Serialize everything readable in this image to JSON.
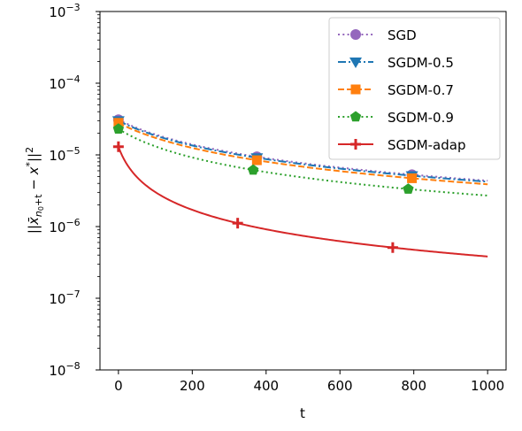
{
  "chart_data": {
    "type": "line",
    "xlabel": "t",
    "ylabel": "||x̄_{n₀+t} − x*||²",
    "ylabel_parts": {
      "open": "||",
      "xbar": "x̄",
      "sub_n": "n",
      "sub_0": "0",
      "sub_rest": "+t",
      "minus": " − x",
      "star": "*",
      "close": "||",
      "sq": "2"
    },
    "x_scale": "linear",
    "y_scale": "log",
    "xlim": [
      -50,
      1050
    ],
    "ylim": [
      1e-08,
      0.001
    ],
    "xticks": [
      0,
      200,
      400,
      600,
      800,
      1000
    ],
    "xtick_labels": [
      "0",
      "200",
      "400",
      "600",
      "800",
      "1000"
    ],
    "yticks": [
      {
        "value": 1e-08,
        "base": "10",
        "exp": "−8"
      },
      {
        "value": 1e-07,
        "base": "10",
        "exp": "−7"
      },
      {
        "value": 1e-06,
        "base": "10",
        "exp": "−6"
      },
      {
        "value": 1e-05,
        "base": "10",
        "exp": "−5"
      },
      {
        "value": 0.0001,
        "base": "10",
        "exp": "−4"
      },
      {
        "value": 0.001,
        "base": "10",
        "exp": "−3"
      }
    ],
    "grid": false,
    "legend_position": "top-right",
    "series": [
      {
        "name": "SGD",
        "color": "#9467bd",
        "linestyle": "dotted",
        "marker": "circle",
        "a": 3.1e-05,
        "b": 0.0,
        "c": 0.0061,
        "d": 1.0,
        "marker_x": [
          0,
          375,
          795
        ]
      },
      {
        "name": "SGDM-0.5",
        "color": "#1f77b4",
        "linestyle": "dashdot",
        "marker": "triangle-down",
        "a": 3e-05,
        "b": 0.0,
        "c": 0.0061,
        "d": 1.0,
        "marker_x": [
          0,
          375,
          795
        ]
      },
      {
        "name": "SGDM-0.7",
        "color": "#ff7f0e",
        "linestyle": "dashed",
        "marker": "square",
        "a": 2.8e-05,
        "b": 0.0,
        "c": 0.0062,
        "d": 1.0,
        "marker_x": [
          0,
          375,
          795
        ]
      },
      {
        "name": "SGDM-0.9",
        "color": "#2ca02c",
        "linestyle": "dotted",
        "marker": "pentagon",
        "a": 2.3e-05,
        "b": 0.0,
        "c": 0.0075,
        "d": 1.0,
        "marker_x": [
          0,
          365,
          785
        ]
      },
      {
        "name": "SGDM-adap",
        "color": "#d62728",
        "linestyle": "solid",
        "marker": "plus",
        "a": 1.3e-05,
        "b": 0.0,
        "c": 0.033,
        "d": 1.0,
        "marker_x": [
          0,
          323,
          743
        ]
      }
    ]
  }
}
